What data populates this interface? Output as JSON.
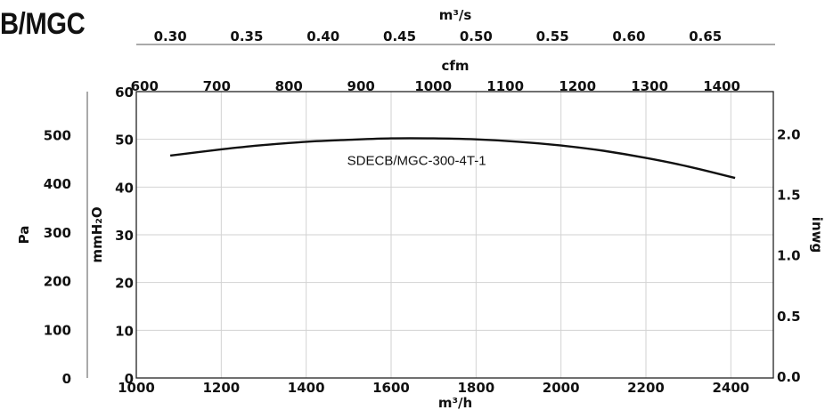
{
  "title": "B/MGC",
  "chart_data": {
    "type": "line",
    "series": [
      {
        "name": "SDECB/MGC-300-4T-1",
        "x": [
          1080,
          1200,
          1300,
          1400,
          1500,
          1600,
          1700,
          1800,
          1900,
          2000,
          2100,
          2200,
          2300,
          2410
        ],
        "y": [
          46.6,
          47.9,
          48.8,
          49.5,
          49.9,
          50.2,
          50.2,
          50.0,
          49.5,
          48.7,
          47.6,
          46.1,
          44.3,
          41.9
        ]
      }
    ],
    "axes": {
      "bottom": {
        "label": "m³/h",
        "range": [
          1000,
          2500
        ],
        "ticks": [
          1000,
          1200,
          1400,
          1600,
          1800,
          2000,
          2200,
          2400
        ],
        "tick_labels": [
          "1000",
          "1200",
          "1400",
          "1600",
          "1800",
          "2000",
          "2200",
          "2400"
        ]
      },
      "top_cfm": {
        "label": "cfm",
        "ticks": [
          600,
          700,
          800,
          900,
          1000,
          1100,
          1200,
          1300,
          1400
        ],
        "tick_labels": [
          "600",
          "700",
          "800",
          "900",
          "1000",
          "1100",
          "1200",
          "1300",
          "1400"
        ]
      },
      "top_m3s": {
        "label": "m³/s",
        "ticks": [
          0.3,
          0.35,
          0.4,
          0.45,
          0.5,
          0.55,
          0.6,
          0.65
        ],
        "tick_labels": [
          "0.30",
          "0.35",
          "0.40",
          "0.45",
          "0.50",
          "0.55",
          "0.60",
          "0.65"
        ]
      },
      "left_mmh2o": {
        "label": "mmH₂O",
        "range": [
          0,
          60
        ],
        "ticks": [
          0,
          10,
          20,
          30,
          40,
          50,
          60
        ],
        "tick_labels": [
          "0",
          "10",
          "20",
          "30",
          "40",
          "50",
          "60"
        ]
      },
      "left_pa": {
        "label": "Pa",
        "ticks": [
          0,
          100,
          200,
          300,
          400,
          500
        ],
        "tick_labels": [
          "0",
          "100",
          "200",
          "300",
          "400",
          "500"
        ]
      },
      "right_inwg": {
        "label": "inwg",
        "ticks": [
          0.0,
          0.5,
          1.0,
          1.5,
          2.0
        ],
        "tick_labels": [
          "0.0",
          "0.5",
          "1.0",
          "1.5",
          "2.0"
        ]
      }
    },
    "grid": true
  }
}
